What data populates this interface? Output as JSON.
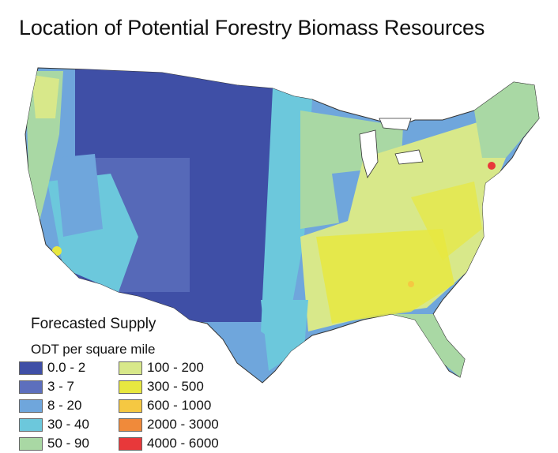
{
  "title": "Location of Potential Forestry Biomass Resources",
  "legend": {
    "title": "Forecasted Supply",
    "subtitle": "ODT per square mile",
    "items": [
      {
        "label": "0.0 - 2",
        "color": "#3f4fa6"
      },
      {
        "label": "3 - 7",
        "color": "#5d6fbd"
      },
      {
        "label": "8 - 20",
        "color": "#6fa6dc"
      },
      {
        "label": "30 - 40",
        "color": "#6cc8dc"
      },
      {
        "label": "50 - 90",
        "color": "#a9d8a4"
      },
      {
        "label": "100 - 200",
        "color": "#d8e88a"
      },
      {
        "label": "300 - 500",
        "color": "#e8e840"
      },
      {
        "label": "600 - 1000",
        "color": "#f5c842"
      },
      {
        "label": "2000 - 3000",
        "color": "#f08a3a"
      },
      {
        "label": "4000 - 6000",
        "color": "#e8383a"
      }
    ]
  }
}
